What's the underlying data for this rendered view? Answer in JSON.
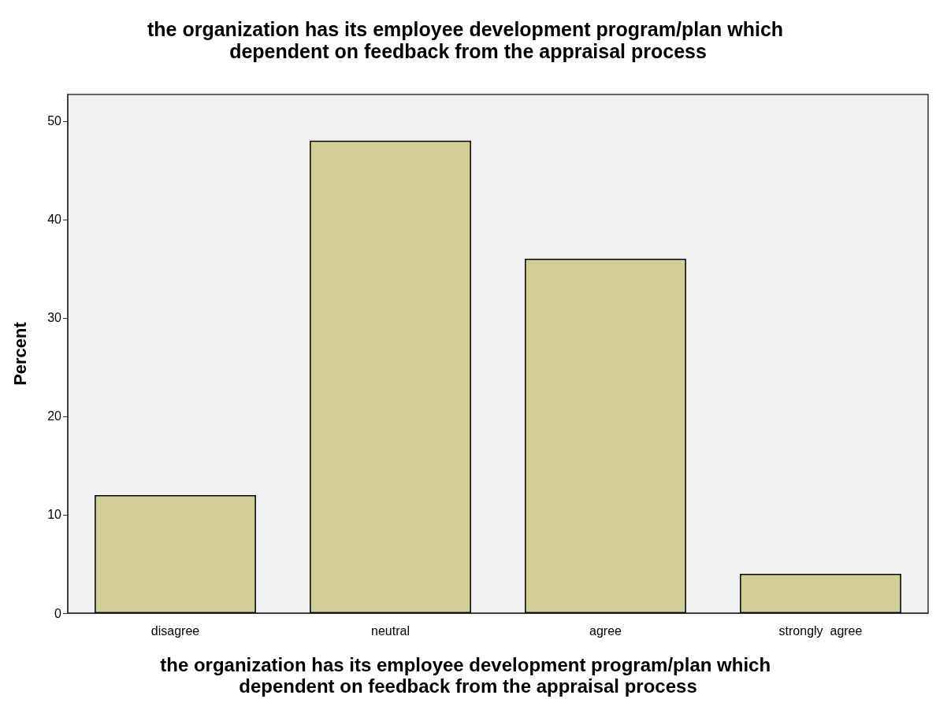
{
  "chart_data": {
    "type": "bar",
    "title": "the organization has its employee development program/plan which dependent on feedback from the appraisal process",
    "xlabel": "the organization has its employee development program/plan which dependent on feedback from the appraisal process",
    "ylabel": "Percent",
    "categories": [
      "disagree",
      "neutral",
      "agree",
      "strongly  agree"
    ],
    "values": [
      12,
      48,
      36,
      4
    ],
    "color": "#d3ce97",
    "ylim": [
      0,
      52.7
    ],
    "yticks": [
      0,
      10,
      20,
      30,
      40,
      50
    ],
    "grid": false
  }
}
